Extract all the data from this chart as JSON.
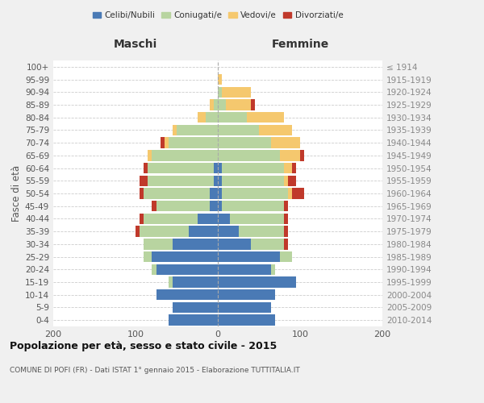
{
  "age_groups": [
    "0-4",
    "5-9",
    "10-14",
    "15-19",
    "20-24",
    "25-29",
    "30-34",
    "35-39",
    "40-44",
    "45-49",
    "50-54",
    "55-59",
    "60-64",
    "65-69",
    "70-74",
    "75-79",
    "80-84",
    "85-89",
    "90-94",
    "95-99",
    "100+"
  ],
  "birth_years": [
    "2010-2014",
    "2005-2009",
    "2000-2004",
    "1995-1999",
    "1990-1994",
    "1985-1989",
    "1980-1984",
    "1975-1979",
    "1970-1974",
    "1965-1969",
    "1960-1964",
    "1955-1959",
    "1950-1954",
    "1945-1949",
    "1940-1944",
    "1935-1939",
    "1930-1934",
    "1925-1929",
    "1920-1924",
    "1915-1919",
    "≤ 1914"
  ],
  "maschi": {
    "celibi": [
      60,
      55,
      75,
      55,
      75,
      80,
      55,
      35,
      25,
      10,
      10,
      5,
      5,
      0,
      0,
      0,
      0,
      0,
      0,
      0,
      0
    ],
    "coniugati": [
      0,
      0,
      0,
      5,
      5,
      10,
      35,
      60,
      65,
      65,
      80,
      80,
      80,
      80,
      60,
      50,
      15,
      5,
      0,
      0,
      0
    ],
    "vedovi": [
      0,
      0,
      0,
      0,
      0,
      0,
      0,
      0,
      0,
      0,
      0,
      0,
      0,
      5,
      5,
      5,
      10,
      5,
      0,
      0,
      0
    ],
    "divorziati": [
      0,
      0,
      0,
      0,
      0,
      0,
      0,
      5,
      5,
      5,
      5,
      10,
      5,
      0,
      5,
      0,
      0,
      0,
      0,
      0,
      0
    ]
  },
  "femmine": {
    "nubili": [
      70,
      65,
      70,
      95,
      65,
      75,
      40,
      25,
      15,
      5,
      5,
      5,
      5,
      0,
      0,
      0,
      0,
      0,
      0,
      0,
      0
    ],
    "coniugate": [
      0,
      0,
      0,
      0,
      5,
      15,
      40,
      55,
      65,
      75,
      80,
      75,
      75,
      75,
      65,
      50,
      35,
      10,
      5,
      0,
      0
    ],
    "vedove": [
      0,
      0,
      0,
      0,
      0,
      0,
      0,
      0,
      0,
      0,
      5,
      5,
      10,
      25,
      35,
      40,
      45,
      30,
      35,
      5,
      0
    ],
    "divorziate": [
      0,
      0,
      0,
      0,
      0,
      0,
      5,
      5,
      5,
      5,
      15,
      10,
      5,
      5,
      0,
      0,
      0,
      5,
      0,
      0,
      0
    ]
  },
  "colors": {
    "celibi_nubili": "#4a7ab5",
    "coniugati": "#b8d4a0",
    "vedovi": "#f5c86e",
    "divorziati": "#c0392b"
  },
  "title": "Popolazione per età, sesso e stato civile - 2015",
  "subtitle": "COMUNE DI POFI (FR) - Dati ISTAT 1° gennaio 2015 - Elaborazione TUTTITALIA.IT",
  "xlabel_left": "Maschi",
  "xlabel_right": "Femmine",
  "ylabel_left": "Fasce di età",
  "xlim": 200,
  "bg_color": "#f0f0f0",
  "plot_bg": "#ffffff",
  "legend_labels": [
    "Celibi/Nubili",
    "Coniugati/e",
    "Vedovi/e",
    "Divorziati/e"
  ]
}
